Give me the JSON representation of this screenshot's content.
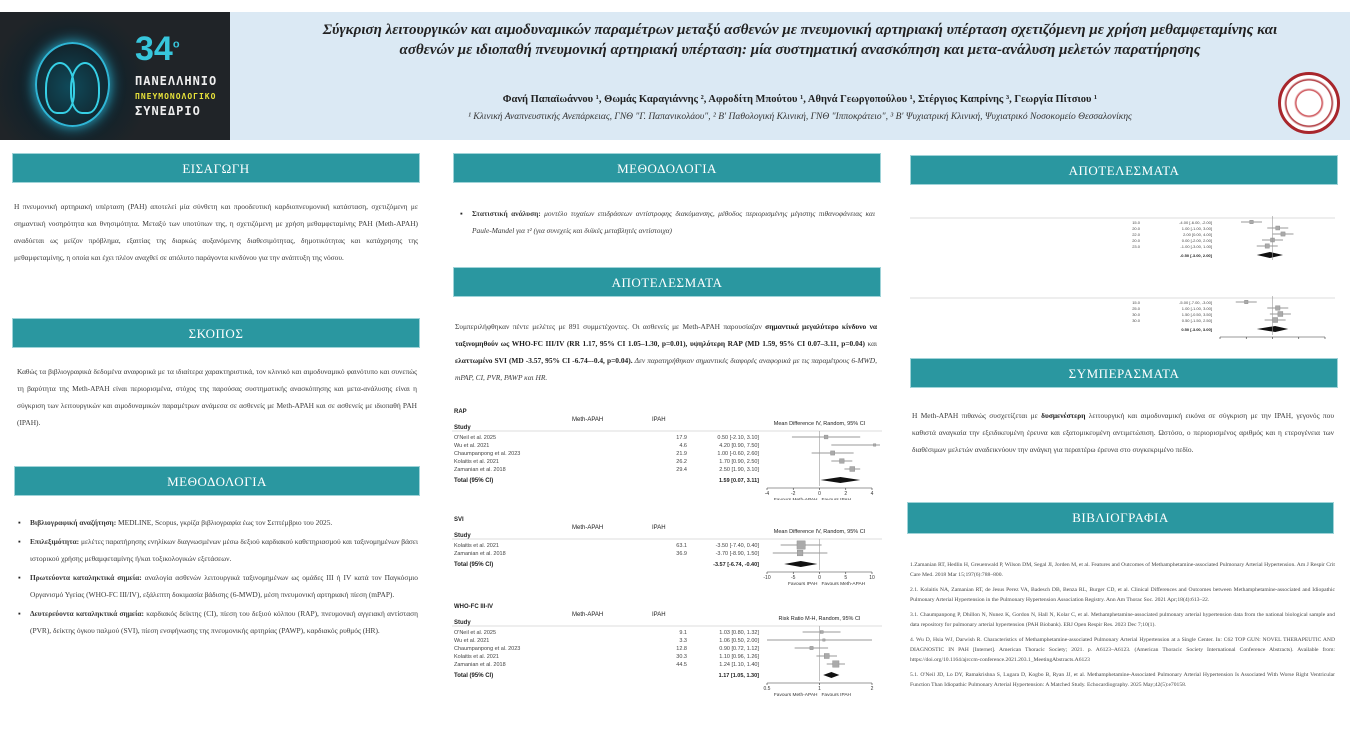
{
  "header": {
    "title": "Σύγκριση λειτουργικών και αιμοδυναμικών παραμέτρων μεταξύ ασθενών με πνευμονική αρτηριακή υπέρταση σχετιζόμενη με χρήση μεθαμφεταμίνης και ασθενών με ιδιοπαθή πνευμονική αρτηριακή υπέρταση: μία συστηματική ανασκόπηση και μετα-ανάλυση μελετών παρατήρησης",
    "authors": "Φανή Παπαϊωάννου ¹, Θωμάς Καραγιάννης ², Αφροδίτη Μπούτου ¹, Αθηνά Γεωργοπούλου ¹, Στέργιος Καπρίνης ³, Γεωργία Πίτσιου ¹",
    "affiliations": "¹ Κλινική Αναπνευστικής Ανεπάρκειας, ΓΝΘ \"Γ. Παπανικολάου\",  ² Β' Παθολογική Κλινική, ΓΝΘ \"Ιπποκράτειο\",  ³ Β' Ψυχιατρική Κλινική, Ψυχιατρικό Νοσοκομείο Θεσσαλονίκης",
    "logo": {
      "number": "34",
      "sup": "ο",
      "line1": "ΠΑΝΕΛΛΗΝΙΟ",
      "line2": "ΠΝΕΥΜΟΝΟΛΟΓΙΚΟ",
      "line3": "ΣΥΝΕΔΡΙΟ"
    }
  },
  "colors": {
    "section_header": "#2a97a0",
    "header_bg": "#dbe9f4",
    "seal": "#a8262c"
  },
  "intro": {
    "heading": "ΕΙΣΑΓΩΓΗ",
    "text": "Η πνευμονική αρτηριακή υπέρταση (PAH) αποτελεί μία σύνθετη και προοδευτική καρδιοπνευμονική κατάσταση, σχετιζόμενη με σημαντική νοσηρότητα και θνησιμότητα. Μεταξύ των υποτύπων της, η σχετιζόμενη με χρήση μεθαμφεταμίνης PAH (Meth-APAH) αναδύεται ως μείζον πρόβλημα, εξαιτίας της διαρκώς αυξανόμενης διαθεσιμότητας, δημοτικότητας και κατάχρησης της μεθαμφεταμίνης, η οποία και έχει πλέον αναχθεί σε απόλυτο παράγοντα κινδύνου για την ανάπτυξη της νόσου."
  },
  "aim": {
    "heading": "ΣΚΟΠΟΣ",
    "text": "Καθώς τα βιβλιογραφικά δεδομένα αναφορικά με τα ιδιαίτερα χαρακτηριστικά, τον κλινικό και αιμοδυναμικό φαινότυπο και συνεπώς τη βαρύτητα της Meth-APAH είναι περιορισμένα, στόχος της παρούσας συστηματικής ανασκόπησης και μετα-ανάλυσης είναι η σύγκριση των λειτουργικών και αιμοδυναμικών παραμέτρων ανάμεσα σε ασθενείς με Meth-APAH και σε ασθενείς με ιδιοπαθή PAH (IPAH)."
  },
  "methods": {
    "heading": "ΜΕΘΟΔΟΛΟΓΙΑ",
    "items": [
      {
        "label": "Βιβλιογραφική αναζήτηση:",
        "text": " MEDLINE, Scopus, γκρίζα βιβλιογραφία έως τον Σεπτέμβριο του 2025."
      },
      {
        "label": "Επιλεξιμότητα:",
        "text": " μελέτες παρατήρησης ενηλίκων διαγνωσμένων μέσω δεξιού καρδιακού καθετηριασμού και ταξινομημένων βάσει ιστορικού χρήσης μεθαμφεταμίνης ή/και τοξικολογικών εξετάσεων."
      },
      {
        "label": "Πρωτεύοντα καταληκτικά σημεία:",
        "text": " αναλογία ασθενών λειτουργικά ταξινομημένων ως ομάδες III ή IV κατά τον Παγκόσμιο Οργανισμό Υγείας (WHO-FC III/IV), εξάλεπτη δοκιμασία βάδισης (6-MWD), μέση πνευμονική αρτηριακή πίεση (mPAP)."
      },
      {
        "label": "Δευτερεύοντα καταληκτικά σημεία:",
        "text": " καρδιακός δείκτης (CI), πίεση του δεξιού κόλπου (RAP), πνευμονική αγγειακή αντίσταση (PVR), δείκτης όγκου παλμού (SVI), πίεση ενσφήνωσης της πνευμονικής αρτηρίας (PAWP), καρδιακός ρυθμός (HR)."
      }
    ]
  },
  "methods2": {
    "heading": "ΜΕΘΟΔΟΛΟΓΙΑ",
    "items": [
      {
        "label": "Στατιστική ανάλυση:",
        "text": " μοντέλο τυχαίων επιδράσεων αντίστροφης διακύμανσης, μέθοδος περιορισμένης μέγιστης πιθανοφάνειας και Paule-Mandel για τ² (για συνεχείς και δυϊκές μεταβλητές αντίστοιχα)"
      }
    ]
  },
  "results": {
    "heading": "ΑΠΟΤΕΛΕΣΜΑΤΑ",
    "t1": "Συμπεριλήφθηκαν πέντε μελέτες με 891 συμμετέχοντες. Οι ασθενείς με Meth-APAH παρουσίαζαν ",
    "b1": "σημαντικά μεγαλύτερο κίνδυνο να ταξινομηθούν ως WHO-FC III/IV (RR 1.17, 95% CI 1.05–1.30, p=0.01), υψηλότερη RAP (MD 1.59, 95% CI 0.07–3.11, p=0.04)",
    "t2": " και ",
    "b2": "ελαττωμένο SVI (MD -3.57, 95% CI -6.74–-0.4, p=0.04).",
    "t3": " Δεν παρατηρήθηκαν σημαντικές διαφορές αναφορικά με τις παραμέτρους 6-MWD, mPAP, CI, PVR, PAWP και HR."
  },
  "results_right": {
    "heading": "ΑΠΟΤΕΛΕΣΜΑΤΑ"
  },
  "conclusions": {
    "heading": "ΣΥΜΠΕΡΑΣΜΑΤΑ",
    "t1": "Η Meth-APAH πιθανώς συσχετίζεται με ",
    "b1": "δυσμενέστερη",
    "t2": " λειτουργική και αιμοδυναμική εικόνα σε σύγκριση με την IPAH, γεγονός που καθιστά αναγκαία την εξειδικευμένη έρευνα και εξατομικευμένη αντιμετώπιση. Ωστόσο, ο περιορισμένος αριθμός και η ετερογένεια των διαθέσιμων μελετών αναδεικνύουν την ανάγκη για περαιτέρω έρευνα στο συγκεκριμένο πεδίο."
  },
  "references": {
    "heading": "ΒΙΒΛΙΟΓΡΑΦΙΑ",
    "items": [
      "1.Zamanian RT, Hedlin H, Greuenwald P, Wilson DM, Segal JI, Jorden M, et al. Features and Outcomes of Methamphetamine-associated Pulmonary Arterial Hypertension. Am J Respir Crit Care Med. 2018 Mar 15;197(6):788–800.",
      "2.1. Kolaitis NA, Zamanian RT, de Jesus Perez VA, Badesch DB, Benza RL, Burger CD, et al. Clinical Differences and Outcomes between Methamphetamine-associated and Idiopathic Pulmonary Arterial Hypertension in the Pulmonary Hypertension Association Registry. Ann Am Thorac Soc. 2021 Apr;18(4):613–22.",
      "3.1. Chaumpanpong P, Dhillon N, Nunez K, Gordon N, Hall N, Kolar C, et al. Methamphetamine-associated pulmonary arterial hypertension data from the national biological sample and data repository for pulmonary arterial hypertension (PAH Biobank). ERJ Open Respir Res. 2023 Dec 7;10(1).",
      "4. Wu D, Hsia WJ, Darwish R. Characteristics of Methamphetamine-associated Pulmonary Arterial Hypertension at a Single Center. In: C62 TOP GUN: NOVEL THERAPEUTIC AND DIAGNOSTIC IN PAH [Internet]. American Thoracic Society; 2021. p. A6123–A6123. (American Thoracic Society International Conference Abstracts). Available from: https://doi.org/10.1164/ajrccm-conference.2021.203.1_MeetingAbstracts.A6123",
      "5.1. O'Neil JD, Lo DY, Ramakrishna S, Lugara D, Kogbo B, Ryan JJ, et al. Methamphetamine-Associated Pulmonary Arterial Hypertension Is Associated With Worse Right Ventricular Function Than Idiopathic Pulmonary Arterial Hypertension: A Matched Study. Echocardiography. 2025 May;42(5):e70158."
    ]
  },
  "chart_data": [
    {
      "type": "forest",
      "title": "RAP",
      "group1": "Meth-APAH",
      "group2": "IPAH",
      "study_header": "Study",
      "effect_header": "Mean Difference IV, Random, 95% CI",
      "xlim": [
        -4,
        4
      ],
      "ticks": [
        -4,
        -2,
        0,
        2,
        4
      ],
      "favours_left": "Favours Meth-APAH",
      "favours_right": "Favours IPAH",
      "studies": [
        {
          "name": "O'Neil et al. 2025",
          "est": 0.5,
          "lo": -2.1,
          "hi": 3.1,
          "weight": 17.9
        },
        {
          "name": "Wu et al. 2021",
          "est": 4.2,
          "lo": 0.9,
          "hi": 7.5,
          "weight": 4.6
        },
        {
          "name": "Chaumpanpong et al. 2023",
          "est": 1.0,
          "lo": -0.6,
          "hi": 2.6,
          "weight": 21.9
        },
        {
          "name": "Kolaitis et al. 2021",
          "est": 1.7,
          "lo": 0.9,
          "hi": 2.5,
          "weight": 26.2
        },
        {
          "name": "Zamanian et al. 2018",
          "est": 2.5,
          "lo": 1.9,
          "hi": 3.1,
          "weight": 29.4
        }
      ],
      "total": {
        "name": "Total (95% CI)",
        "est": 1.59,
        "lo": 0.07,
        "hi": 3.11,
        "weight": 100
      }
    },
    {
      "type": "forest",
      "title": "SVI",
      "group1": "Meth-APAH",
      "group2": "IPAH",
      "study_header": "Study",
      "effect_header": "Mean Difference IV, Random, 95% CI",
      "xlim": [
        -10,
        10
      ],
      "ticks": [
        -10,
        -5,
        0,
        5,
        10
      ],
      "favours_left": "Favours IPAH",
      "favours_right": "Favours Meth-APAH",
      "studies": [
        {
          "name": "Kolaitis et al. 2021",
          "est": -3.5,
          "lo": -7.4,
          "hi": 0.4,
          "weight": 63.1
        },
        {
          "name": "Zamanian et al. 2018",
          "est": -3.7,
          "lo": -8.9,
          "hi": 1.5,
          "weight": 36.9
        }
      ],
      "total": {
        "name": "Total (95% CI)",
        "est": -3.57,
        "lo": -6.74,
        "hi": -0.4,
        "weight": 100
      }
    },
    {
      "type": "forest",
      "title": "WHO-FC III-IV",
      "group1": "Meth-APAH",
      "group2": "IPAH",
      "study_header": "Study",
      "effect_header": "Risk Ratio M-H, Random, 95% CI",
      "xlim": [
        0.5,
        2
      ],
      "log": true,
      "ticks": [
        0.5,
        1,
        2
      ],
      "favours_left": "Favours Meth-APAH",
      "favours_right": "Favours IPAH",
      "studies": [
        {
          "name": "O'Neil et al. 2025",
          "est": 1.03,
          "lo": 0.8,
          "hi": 1.32,
          "weight": 9.1
        },
        {
          "name": "Wu et al. 2021",
          "est": 1.06,
          "lo": 0.5,
          "hi": 2.0,
          "weight": 3.3
        },
        {
          "name": "Chaumpanpong et al. 2023",
          "est": 0.9,
          "lo": 0.72,
          "hi": 1.12,
          "weight": 12.8
        },
        {
          "name": "Kolaitis et al. 2021",
          "est": 1.1,
          "lo": 0.96,
          "hi": 1.26,
          "weight": 30.3
        },
        {
          "name": "Zamanian et al. 2018",
          "est": 1.24,
          "lo": 1.1,
          "hi": 1.4,
          "weight": 44.5
        }
      ],
      "total": {
        "name": "Total (95% CI)",
        "est": 1.17,
        "lo": 1.05,
        "hi": 1.3,
        "weight": 100
      }
    },
    {
      "type": "forest",
      "title": "",
      "xlim": [
        -10,
        10
      ],
      "ticks": [
        -10,
        -5,
        0,
        5,
        10
      ],
      "studies": [
        {
          "est": -4,
          "lo": -6,
          "hi": -2,
          "weight": 15
        },
        {
          "est": 1,
          "lo": -1,
          "hi": 3,
          "weight": 20
        },
        {
          "est": 2,
          "lo": 0,
          "hi": 4,
          "weight": 22
        },
        {
          "est": 0,
          "lo": -2,
          "hi": 2,
          "weight": 20
        },
        {
          "est": -1,
          "lo": -3,
          "hi": 1,
          "weight": 23
        }
      ],
      "total": {
        "est": -0.5,
        "lo": -3,
        "hi": 2,
        "weight": 100
      }
    },
    {
      "type": "forest",
      "title": "",
      "xlim": [
        -10,
        10
      ],
      "ticks": [
        -10,
        -5,
        0,
        5,
        10
      ],
      "studies": [
        {
          "est": -5,
          "lo": -7,
          "hi": -3,
          "weight": 15
        },
        {
          "est": 1,
          "lo": -1,
          "hi": 3,
          "weight": 25
        },
        {
          "est": 1.5,
          "lo": -0.5,
          "hi": 3.5,
          "weight": 30
        },
        {
          "est": 0.5,
          "lo": -1.5,
          "hi": 2.5,
          "weight": 30
        }
      ],
      "total": {
        "est": 0.5,
        "lo": -3,
        "hi": 3,
        "weight": 100
      }
    }
  ]
}
